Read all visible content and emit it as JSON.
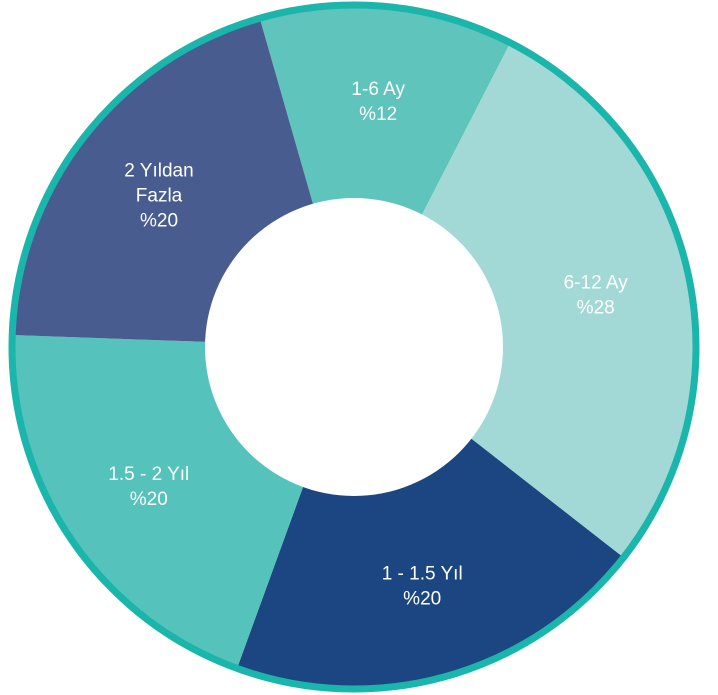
{
  "chart_data": {
    "type": "pie",
    "donut": true,
    "title": "",
    "slices": [
      {
        "label": "1-6 Ay",
        "value": 12,
        "display": "%12",
        "color": "#5fc4bc",
        "lines": [
          "1-6 Ay",
          "%12"
        ]
      },
      {
        "label": "6-12 Ay",
        "value": 28,
        "display": "%28",
        "color": "#a2d9d6",
        "lines": [
          "6-12 Ay",
          "%28"
        ]
      },
      {
        "label": "1 - 1.5 Yıl",
        "value": 20,
        "display": "%20",
        "color": "#1b4681",
        "lines": [
          "1 - 1.5 Yıl",
          "%20"
        ]
      },
      {
        "label": "1.5 - 2 Yıl",
        "value": 20,
        "display": "%20",
        "color": "#55c2bb",
        "lines": [
          "1.5 - 2 Yıl",
          "%20"
        ]
      },
      {
        "label": "2 Yıldan Fazla",
        "value": 20,
        "display": "%20",
        "color": "#485c8f",
        "lines": [
          "2 Yıldan",
          "Fazla",
          "%20"
        ]
      }
    ],
    "ring_color": "#1ab5ab",
    "hole_color": "#ffffff"
  }
}
